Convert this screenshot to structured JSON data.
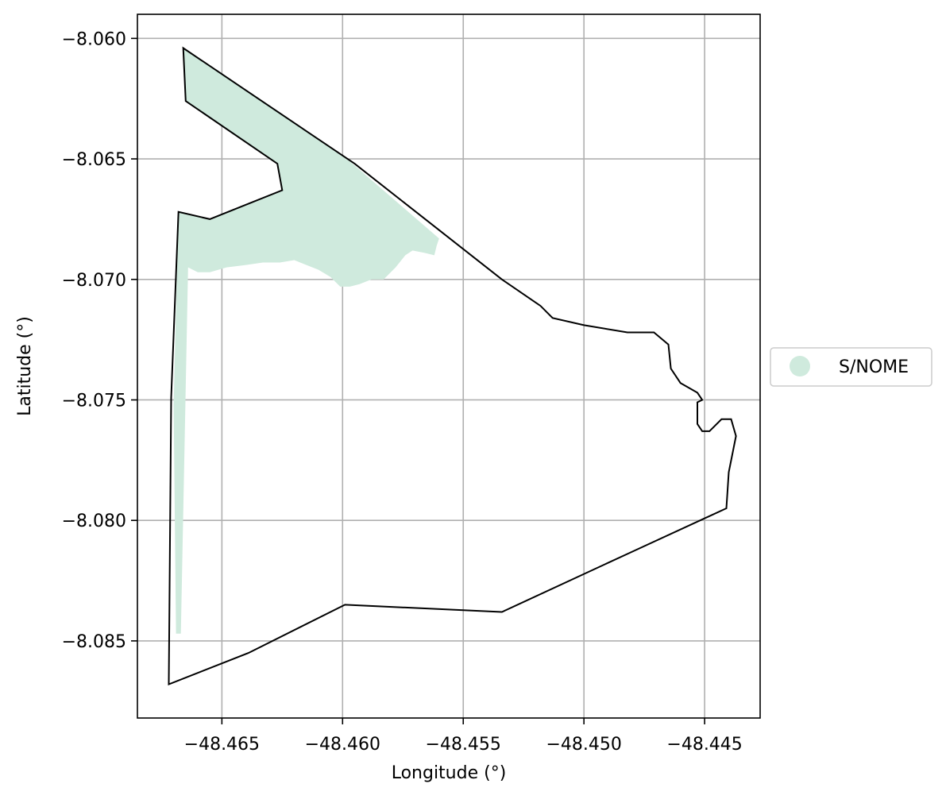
{
  "chart_data": {
    "type": "map",
    "xlabel": "Longitude (°)",
    "ylabel": "Latitude (°)",
    "xlim": [
      -48.4685,
      -48.4427
    ],
    "ylim": [
      -8.0882,
      -8.059
    ],
    "grid": true,
    "legend_placement": "center-right, outside axes",
    "x_ticks": [
      -48.465,
      -48.46,
      -48.455,
      -48.45,
      -48.445
    ],
    "x_tick_labels": [
      "−48.465",
      "−48.460",
      "−48.455",
      "−48.450",
      "−48.445"
    ],
    "y_ticks": [
      -8.06,
      -8.065,
      -8.07,
      -8.075,
      -8.08,
      -8.085
    ],
    "y_tick_labels": [
      "−8.060",
      "−8.065",
      "−8.070",
      "−8.075",
      "−8.080",
      "−8.085"
    ],
    "legend": [
      {
        "label": "S/NOME",
        "color": "#cfeadd"
      }
    ],
    "layers": {
      "filled_area": {
        "name": "S/NOME",
        "color": "#cfeadd",
        "coords": [
          [
            -48.4666,
            -8.0604
          ],
          [
            -48.4597,
            -8.0651
          ],
          [
            -48.456,
            -8.0683
          ],
          [
            -48.4561,
            -8.0686
          ],
          [
            -48.4562,
            -8.069
          ],
          [
            -48.4566,
            -8.0689
          ],
          [
            -48.4571,
            -8.0688
          ],
          [
            -48.4574,
            -8.069
          ],
          [
            -48.4578,
            -8.0695
          ],
          [
            -48.4583,
            -8.07
          ],
          [
            -48.4588,
            -8.07
          ],
          [
            -48.4593,
            -8.0702
          ],
          [
            -48.4597,
            -8.0703
          ],
          [
            -48.4601,
            -8.0703
          ],
          [
            -48.4605,
            -8.0699
          ],
          [
            -48.461,
            -8.0696
          ],
          [
            -48.4615,
            -8.0694
          ],
          [
            -48.462,
            -8.0692
          ],
          [
            -48.4626,
            -8.0693
          ],
          [
            -48.4633,
            -8.0693
          ],
          [
            -48.464,
            -8.0694
          ],
          [
            -48.4648,
            -8.0695
          ],
          [
            -48.4655,
            -8.0697
          ],
          [
            -48.466,
            -8.0697
          ],
          [
            -48.4664,
            -8.0695
          ],
          [
            -48.4667,
            -8.0847
          ],
          [
            -48.4669,
            -8.0847
          ],
          [
            -48.467,
            -8.0752
          ],
          [
            -48.4668,
            -8.0672
          ],
          [
            -48.4655,
            -8.0675
          ],
          [
            -48.4625,
            -8.0663
          ],
          [
            -48.4627,
            -8.0652
          ],
          [
            -48.4665,
            -8.0626
          ],
          [
            -48.4666,
            -8.0604
          ]
        ]
      },
      "boundary": {
        "color": "#000000",
        "coords": [
          [
            -48.4666,
            -8.0604
          ],
          [
            -48.4595,
            -8.0652
          ],
          [
            -48.4534,
            -8.07
          ],
          [
            -48.4518,
            -8.0711
          ],
          [
            -48.4513,
            -8.0716
          ],
          [
            -48.45,
            -8.0719
          ],
          [
            -48.4482,
            -8.0722
          ],
          [
            -48.4471,
            -8.0722
          ],
          [
            -48.4465,
            -8.0727
          ],
          [
            -48.4464,
            -8.0737
          ],
          [
            -48.446,
            -8.0743
          ],
          [
            -48.4453,
            -8.0747
          ],
          [
            -48.4451,
            -8.075
          ],
          [
            -48.4453,
            -8.0751
          ],
          [
            -48.4453,
            -8.076
          ],
          [
            -48.4451,
            -8.0763
          ],
          [
            -48.4448,
            -8.0763
          ],
          [
            -48.4443,
            -8.0758
          ],
          [
            -48.4439,
            -8.0758
          ],
          [
            -48.4437,
            -8.0765
          ],
          [
            -48.444,
            -8.078
          ],
          [
            -48.4441,
            -8.0795
          ],
          [
            -48.448,
            -8.0813
          ],
          [
            -48.4534,
            -8.0838
          ],
          [
            -48.4599,
            -8.0835
          ],
          [
            -48.4639,
            -8.0855
          ],
          [
            -48.4672,
            -8.0868
          ],
          [
            -48.4671,
            -8.0749
          ],
          [
            -48.4668,
            -8.0672
          ],
          [
            -48.4655,
            -8.0675
          ],
          [
            -48.4625,
            -8.0663
          ],
          [
            -48.4627,
            -8.0652
          ],
          [
            -48.4665,
            -8.0626
          ],
          [
            -48.4666,
            -8.0604
          ]
        ]
      }
    }
  }
}
